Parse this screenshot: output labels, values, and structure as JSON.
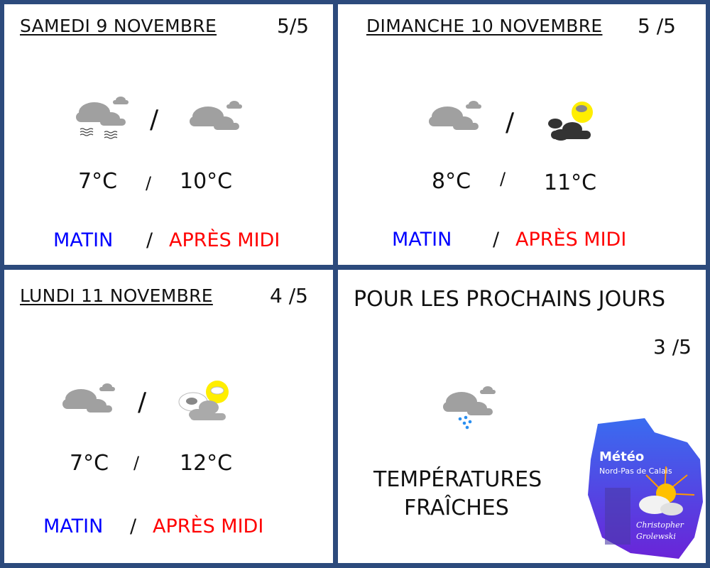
{
  "days": [
    {
      "title": "SAMEDI 9 NOVEMBRE",
      "score": "5/5",
      "icon_morning": "fog-cloud-icon",
      "icon_afternoon": "cloudy-icon",
      "temp_morning": "7°C",
      "temp_afternoon": "10°C",
      "separator": "/",
      "morning": "MATIN",
      "afternoon": "APRÈS MIDI"
    },
    {
      "title": "DIMANCHE 10 NOVEMBRE",
      "score": "5 /5",
      "icon_morning": "cloudy-icon",
      "icon_afternoon": "dark-cloud-sun-icon",
      "temp_morning": "8°C",
      "temp_afternoon": "11°C",
      "separator": "/",
      "morning": "MATIN",
      "afternoon": "APRÈS MIDI"
    },
    {
      "title": "LUNDI 11 NOVEMBRE",
      "score": "4 /5",
      "icon_morning": "cloudy-icon",
      "icon_afternoon": "partly-sunny-icon",
      "temp_morning": "7°C",
      "temp_afternoon": "12°C",
      "separator": "/",
      "morning": "MATIN",
      "afternoon": "APRÈS MIDI"
    }
  ],
  "outlook": {
    "title": "POUR LES PROCHAINS JOURS",
    "score": "3 /5",
    "icon": "rain-cloud-icon",
    "line1": "TEMPÉRATURES",
    "line2": "FRAÎCHES"
  },
  "logo": {
    "title": "Météo",
    "subtitle": "Nord-Pas de Calais",
    "author1": "Christopher",
    "author2": "Grolewski"
  },
  "colors": {
    "border": "#2c4a7c",
    "morning": "#0000ff",
    "afternoon": "#ff0000",
    "cloud": "#a0a0a0",
    "dark_cloud": "#333333",
    "sun": "#ffee00"
  }
}
